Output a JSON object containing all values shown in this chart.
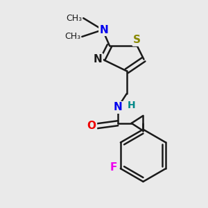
{
  "bg_color": "#eaeaea",
  "bond_color": "#1a1a1a",
  "bond_width": 1.8,
  "figsize": [
    3.0,
    3.0
  ],
  "dpi": 100,
  "colors": {
    "N": "#0000ee",
    "S": "#888800",
    "O": "#ee0000",
    "F": "#ee00ee",
    "H": "#008888",
    "C": "#1a1a1a"
  }
}
